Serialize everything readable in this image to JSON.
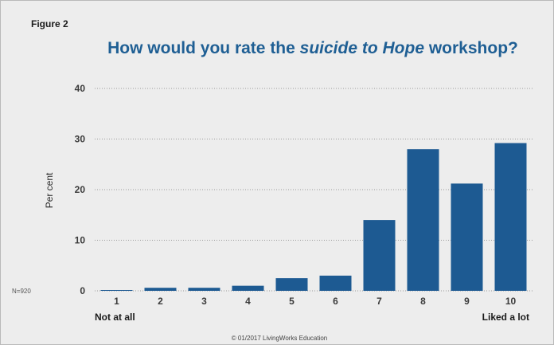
{
  "figure_label": "Figure 2",
  "n_label": "N=920",
  "copyright": "© 01/2017 LivingWorks Education",
  "colors": {
    "bar": "#1d5a92",
    "title": "#1f5f94",
    "background": "#ededed"
  },
  "chart_data": {
    "type": "bar",
    "title": {
      "prefix": "How would you rate the ",
      "italic": "suicide to Hope",
      "suffix": " workshop?"
    },
    "xlabel": "",
    "ylabel": "Per cent",
    "ylim": [
      0,
      40
    ],
    "yticks": [
      0,
      10,
      20,
      30,
      40
    ],
    "grid": true,
    "categories": [
      "1",
      "2",
      "3",
      "4",
      "5",
      "6",
      "7",
      "8",
      "9",
      "10"
    ],
    "values": [
      0.1,
      0.6,
      0.6,
      1.0,
      2.5,
      3.0,
      14.0,
      28.0,
      21.2,
      29.2
    ],
    "scale_low_label": "Not at all",
    "scale_high_label": "Liked a lot"
  }
}
